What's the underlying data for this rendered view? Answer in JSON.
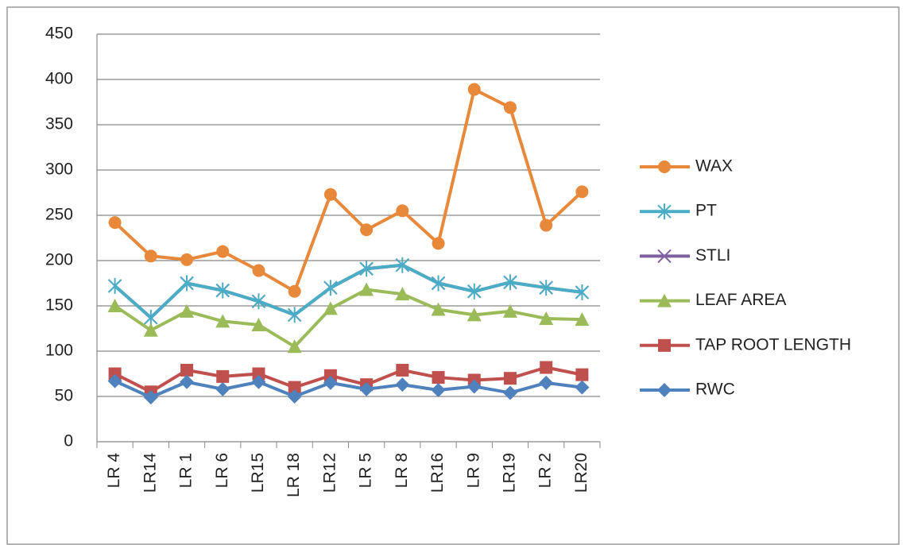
{
  "chart_data": {
    "type": "line",
    "categories": [
      "LR 4",
      "LR14",
      "LR 1",
      "LR 6",
      "LR15",
      "LR 18",
      "LR12",
      "LR 5",
      "LR 8",
      "LR16",
      "LR 9",
      "LR19",
      "LR 2",
      "LR20"
    ],
    "ylim": [
      0,
      450
    ],
    "yticks": [
      0,
      50,
      100,
      150,
      200,
      250,
      300,
      350,
      400,
      450
    ],
    "grid": true,
    "legend": "right",
    "series": [
      {
        "name": "WAX",
        "color": "#e8883a",
        "marker": "circle",
        "values": [
          242,
          205,
          201,
          210,
          189,
          166,
          273,
          234,
          255,
          219,
          389,
          369,
          239,
          276
        ]
      },
      {
        "name": "PT",
        "color": "#4bacc6",
        "marker": "star",
        "values": [
          172,
          137,
          175,
          167,
          155,
          140,
          170,
          191,
          195,
          175,
          166,
          176,
          170,
          165
        ]
      },
      {
        "name": "STLI",
        "color": "#7f5fa0",
        "marker": "x",
        "values": [
          172,
          137,
          175,
          167,
          155,
          140,
          170,
          191,
          195,
          175,
          166,
          176,
          170,
          165
        ]
      },
      {
        "name": "LEAF AREA",
        "color": "#9bbb59",
        "marker": "triangle",
        "values": [
          150,
          123,
          144,
          133,
          129,
          105,
          147,
          168,
          163,
          146,
          140,
          144,
          136,
          135
        ]
      },
      {
        "name": "TAP ROOT LENGTH",
        "color": "#c0504d",
        "marker": "square",
        "values": [
          75,
          55,
          79,
          72,
          75,
          60,
          73,
          63,
          79,
          71,
          68,
          70,
          82,
          74
        ]
      },
      {
        "name": "RWC",
        "color": "#4f81bd",
        "marker": "diamond",
        "values": [
          67,
          49,
          66,
          58,
          66,
          50,
          65,
          58,
          63,
          57,
          61,
          54,
          65,
          60
        ]
      }
    ]
  }
}
